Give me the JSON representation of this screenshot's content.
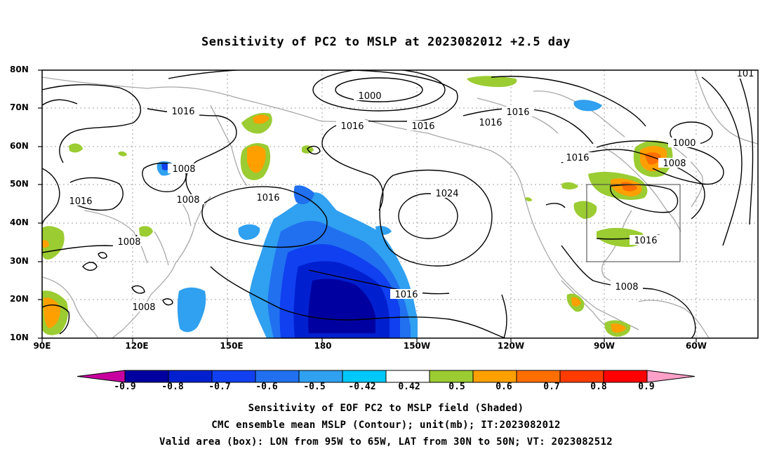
{
  "title": "Sensitivity of PC2 to MSLP at 2023082012 +2.5 day",
  "lat_labels": [
    "80N",
    "70N",
    "60N",
    "50N",
    "40N",
    "30N",
    "20N",
    "10N"
  ],
  "lon_labels": [
    "90E",
    "120E",
    "150E",
    "180",
    "150W",
    "120W",
    "90W",
    "60W"
  ],
  "colorbar": {
    "labels": [
      "-0.9",
      "-0.8",
      "-0.7",
      "-0.6",
      "-0.5",
      "-0.42",
      "0.42",
      "0.5",
      "0.6",
      "0.7",
      "0.8",
      "0.9"
    ],
    "colors": [
      "#c800a0",
      "#0000a0",
      "#0020d0",
      "#1040f0",
      "#2070f0",
      "#30a0f0",
      "#00c8f8",
      "#ffffff",
      "#9bcc32",
      "#ffa000",
      "#ff6e00",
      "#ff3c00",
      "#ff0000",
      "#ffa0c8"
    ]
  },
  "contour_labels": {
    "c1000_top": "1000",
    "c1000_ne": "1000",
    "c1008_ne": "1008",
    "c1016_nw": "1016",
    "c1016_n1": "1016",
    "c1016_n2": "1016",
    "c1016_n3": "1016",
    "c1016_n4": "1016",
    "c1016_mid": "1016",
    "c1008_w1": "1008",
    "c1016_w": "1016",
    "c1008_w2": "1008",
    "c1008_w3": "1008",
    "c1008_w4": "1008",
    "c1024": "1024",
    "c1016_s": "1016",
    "c1016_ne": "1016",
    "c1016_box": "1016",
    "c1008_se": "1008",
    "c101_edge": "101"
  },
  "captions": [
    "Sensitivity of EOF PC2 to MSLP field (Shaded)",
    "CMC ensemble mean MSLP (Contour); unit(mb); IT:2023082012",
    "Valid area (box): LON from 95W to 65W, LAT from 30N to 50N; VT: 2023082512"
  ]
}
